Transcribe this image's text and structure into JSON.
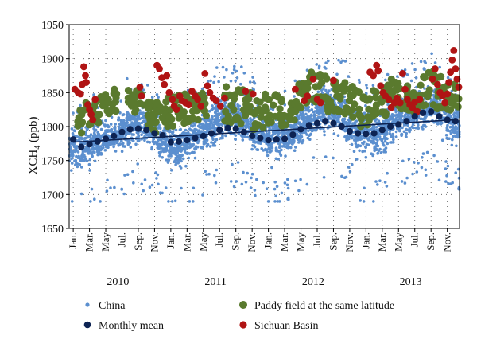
{
  "chart_data": {
    "type": "scatter",
    "ylabel_main": "XCH",
    "ylabel_sub": "4",
    "ylabel_unit": " (ppb)",
    "ylim": [
      1650,
      1950
    ],
    "yticks": [
      1650,
      1700,
      1750,
      1800,
      1850,
      1900,
      1950
    ],
    "x_unit": "month index (Jan 2010 = 0)",
    "xlim": [
      -0.5,
      47.5
    ],
    "xtick_labels": [
      "Jan.",
      "Mar.",
      "May",
      "Jul.",
      "Sep.",
      "Nov.",
      "Jan.",
      "Mar.",
      "May",
      "Jul.",
      "Sep.",
      "Nov.",
      "Jan.",
      "Mar.",
      "May",
      "Jul.",
      "Sep.",
      "Nov.",
      "Jan.",
      "Mar.",
      "May",
      "Jul.",
      "Sep.",
      "Nov."
    ],
    "years": [
      "2010",
      "2011",
      "2012",
      "2013"
    ],
    "grid": "dotted",
    "legend_position": "bottom",
    "trend_line": {
      "start": [
        0,
        1777
      ],
      "end": [
        47,
        1810
      ]
    },
    "series": [
      {
        "name": "China",
        "color": "#5b8fcf",
        "points_per_month": 70,
        "monthly_spread": [
          [
            1725,
            1815
          ],
          [
            1730,
            1810
          ],
          [
            1735,
            1810
          ],
          [
            1740,
            1815
          ],
          [
            1750,
            1815
          ],
          [
            1750,
            1820
          ],
          [
            1755,
            1830
          ],
          [
            1760,
            1840
          ],
          [
            1765,
            1845
          ],
          [
            1760,
            1845
          ],
          [
            1755,
            1835
          ],
          [
            1740,
            1820
          ],
          [
            1730,
            1815
          ],
          [
            1730,
            1815
          ],
          [
            1740,
            1820
          ],
          [
            1745,
            1825
          ],
          [
            1755,
            1830
          ],
          [
            1760,
            1845
          ],
          [
            1765,
            1855
          ],
          [
            1770,
            1860
          ],
          [
            1770,
            1860
          ],
          [
            1765,
            1855
          ],
          [
            1755,
            1840
          ],
          [
            1745,
            1830
          ],
          [
            1740,
            1825
          ],
          [
            1740,
            1825
          ],
          [
            1745,
            1830
          ],
          [
            1750,
            1835
          ],
          [
            1765,
            1840
          ],
          [
            1770,
            1850
          ],
          [
            1775,
            1865
          ],
          [
            1780,
            1870
          ],
          [
            1780,
            1870
          ],
          [
            1775,
            1865
          ],
          [
            1765,
            1845
          ],
          [
            1750,
            1835
          ],
          [
            1745,
            1835
          ],
          [
            1740,
            1835
          ],
          [
            1750,
            1840
          ],
          [
            1760,
            1845
          ],
          [
            1770,
            1850
          ],
          [
            1775,
            1855
          ],
          [
            1780,
            1860
          ],
          [
            1785,
            1870
          ],
          [
            1785,
            1875
          ],
          [
            1780,
            1870
          ],
          [
            1770,
            1855
          ],
          [
            1760,
            1845
          ]
        ]
      },
      {
        "name": "Monthly mean",
        "color": "#0d2353",
        "values": [
          1781,
          1770,
          1774,
          1778,
          1782,
          1786,
          1792,
          1796,
          1797,
          1795,
          1790,
          1787,
          1777,
          1778,
          1780,
          1783,
          1786,
          1790,
          1795,
          1798,
          1797,
          1792,
          1786,
          1783,
          1780,
          1781,
          1782,
          1788,
          1796,
          1802,
          1805,
          1808,
          1805,
          1800,
          1793,
          1790,
          1789,
          1790,
          1795,
          1800,
          1803,
          1808,
          1815,
          1820,
          1822,
          1815,
          1810,
          1808
        ]
      },
      {
        "name": "Paddy field at the same latitude",
        "color": "#5a7a2e",
        "months": [
          1,
          2,
          3,
          4,
          5,
          7,
          8,
          9,
          10,
          11,
          12,
          13,
          14,
          15,
          16,
          19,
          20,
          21,
          22,
          23,
          24,
          25,
          26,
          27,
          28,
          29,
          30,
          31,
          32,
          33,
          34,
          35,
          36,
          37,
          38,
          39,
          40,
          41,
          42,
          43,
          44,
          45,
          46,
          47
        ],
        "ranges": [
          [
            1790,
            1830
          ],
          [
            1800,
            1835
          ],
          [
            1805,
            1845
          ],
          [
            1815,
            1850
          ],
          [
            1820,
            1855
          ],
          [
            1830,
            1860
          ],
          [
            1820,
            1855
          ],
          [
            1800,
            1850
          ],
          [
            1790,
            1840
          ],
          [
            1800,
            1845
          ],
          [
            1800,
            1845
          ],
          [
            1805,
            1850
          ],
          [
            1800,
            1850
          ],
          [
            1805,
            1850
          ],
          [
            1815,
            1850
          ],
          [
            1805,
            1860
          ],
          [
            1810,
            1860
          ],
          [
            1800,
            1855
          ],
          [
            1795,
            1850
          ],
          [
            1790,
            1850
          ],
          [
            1800,
            1850
          ],
          [
            1810,
            1850
          ],
          [
            1800,
            1840
          ],
          [
            1805,
            1850
          ],
          [
            1820,
            1870
          ],
          [
            1830,
            1880
          ],
          [
            1830,
            1885
          ],
          [
            1820,
            1880
          ],
          [
            1820,
            1870
          ],
          [
            1815,
            1865
          ],
          [
            1805,
            1860
          ],
          [
            1800,
            1855
          ],
          [
            1800,
            1850
          ],
          [
            1815,
            1855
          ],
          [
            1815,
            1865
          ],
          [
            1830,
            1875
          ],
          [
            1825,
            1865
          ],
          [
            1820,
            1865
          ],
          [
            1815,
            1855
          ],
          [
            1830,
            1880
          ],
          [
            1830,
            1885
          ],
          [
            1825,
            1880
          ],
          [
            1820,
            1870
          ],
          [
            1825,
            1865
          ]
        ]
      },
      {
        "name": "Sichuan Basin",
        "color": "#b01414",
        "points": [
          [
            0.2,
            1855
          ],
          [
            0.6,
            1850
          ],
          [
            0.9,
            1848
          ],
          [
            1.1,
            1862
          ],
          [
            1.3,
            1888
          ],
          [
            1.5,
            1875
          ],
          [
            1.6,
            1865
          ],
          [
            1.8,
            1832
          ],
          [
            2.0,
            1825
          ],
          [
            2.2,
            1818
          ],
          [
            2.4,
            1810
          ],
          [
            2.7,
            1840
          ],
          [
            8.2,
            1858
          ],
          [
            8.4,
            1845
          ],
          [
            10.3,
            1890
          ],
          [
            10.6,
            1885
          ],
          [
            10.9,
            1872
          ],
          [
            11.2,
            1862
          ],
          [
            11.5,
            1875
          ],
          [
            11.8,
            1850
          ],
          [
            12.2,
            1840
          ],
          [
            12.4,
            1830
          ],
          [
            12.7,
            1825
          ],
          [
            13.1,
            1845
          ],
          [
            13.4,
            1838
          ],
          [
            13.8,
            1835
          ],
          [
            14.2,
            1832
          ],
          [
            14.6,
            1852
          ],
          [
            15.0,
            1845
          ],
          [
            15.3,
            1840
          ],
          [
            15.7,
            1830
          ],
          [
            16.2,
            1878
          ],
          [
            16.5,
            1860
          ],
          [
            16.8,
            1850
          ],
          [
            17.2,
            1842
          ],
          [
            17.6,
            1838
          ],
          [
            18.1,
            1830
          ],
          [
            18.6,
            1842
          ],
          [
            21.2,
            1852
          ],
          [
            22.1,
            1848
          ],
          [
            27.3,
            1855
          ],
          [
            28.4,
            1838
          ],
          [
            28.8,
            1845
          ],
          [
            29.5,
            1870
          ],
          [
            30.0,
            1840
          ],
          [
            30.4,
            1835
          ],
          [
            32.0,
            1868
          ],
          [
            36.5,
            1880
          ],
          [
            36.9,
            1875
          ],
          [
            37.3,
            1890
          ],
          [
            37.5,
            1882
          ],
          [
            37.8,
            1860
          ],
          [
            38.1,
            1850
          ],
          [
            38.4,
            1845
          ],
          [
            38.8,
            1840
          ],
          [
            39.1,
            1828
          ],
          [
            39.5,
            1835
          ],
          [
            39.8,
            1842
          ],
          [
            40.2,
            1835
          ],
          [
            40.5,
            1878
          ],
          [
            40.8,
            1855
          ],
          [
            41.1,
            1840
          ],
          [
            41.4,
            1832
          ],
          [
            41.7,
            1828
          ],
          [
            42.0,
            1836
          ],
          [
            42.3,
            1822
          ],
          [
            42.6,
            1840
          ],
          [
            44.2,
            1870
          ],
          [
            44.5,
            1885
          ],
          [
            44.8,
            1862
          ],
          [
            45.1,
            1850
          ],
          [
            45.4,
            1845
          ],
          [
            45.7,
            1835
          ],
          [
            46.0,
            1848
          ],
          [
            46.2,
            1865
          ],
          [
            46.4,
            1880
          ],
          [
            46.6,
            1898
          ],
          [
            46.8,
            1912
          ],
          [
            47.0,
            1885
          ],
          [
            47.2,
            1870
          ],
          [
            47.4,
            1858
          ]
        ]
      }
    ]
  }
}
